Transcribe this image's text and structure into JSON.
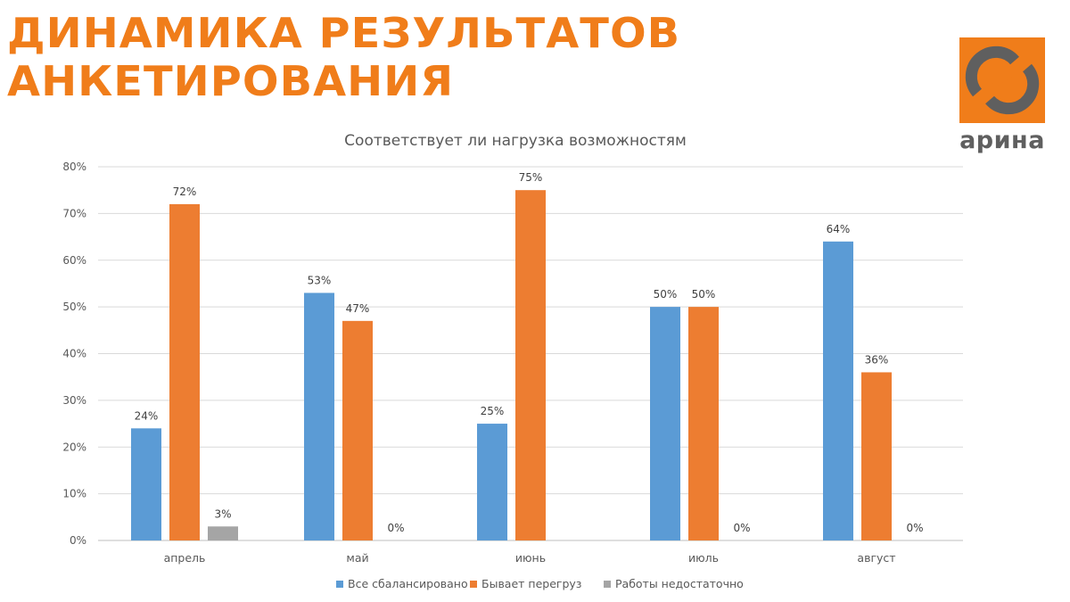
{
  "slide": {
    "title_line1": "ДИНАМИКА РЕЗУЛЬТАТОВ",
    "title_line2": "АНКЕТИРОВАНИЯ"
  },
  "logo": {
    "text": "арина",
    "colors": {
      "box": "#f07d1a",
      "mark": "#5f5f5f"
    }
  },
  "chart_data": {
    "type": "bar",
    "title": "Соответствует ли нагрузка возможностям",
    "categories": [
      "апрель",
      "май",
      "июнь",
      "июль",
      "август"
    ],
    "series": [
      {
        "name": "Все сбалансировано",
        "color": "#5b9bd5",
        "values": [
          24,
          53,
          25,
          50,
          64
        ]
      },
      {
        "name": "Бывает перегруз",
        "color": "#ed7d31",
        "values": [
          72,
          47,
          75,
          50,
          36
        ]
      },
      {
        "name": "Работы недостаточно",
        "color": "#a5a5a5",
        "values": [
          3,
          0,
          null,
          0,
          0
        ]
      }
    ],
    "y_ticks": [
      "0%",
      "10%",
      "20%",
      "30%",
      "40%",
      "50%",
      "60%",
      "70%",
      "80%"
    ],
    "ylim": [
      0,
      80
    ],
    "unit": "%",
    "grid": true,
    "legend_position": "bottom"
  }
}
